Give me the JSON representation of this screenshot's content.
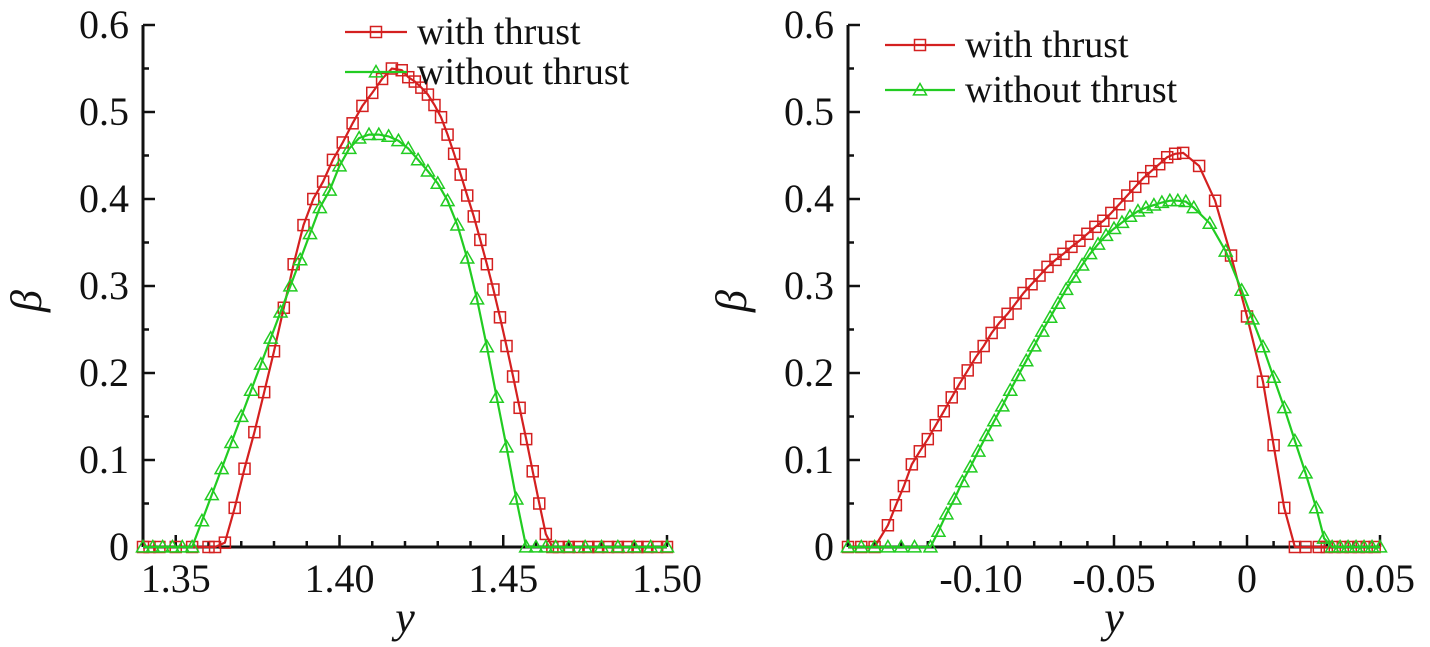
{
  "colors": {
    "with_thrust": "#d42020",
    "without_thrust": "#22cc22",
    "axis": "#111111"
  },
  "chart_data": [
    {
      "type": "line",
      "xlabel": "y",
      "ylabel": "β",
      "xlim": [
        1.34,
        1.5
      ],
      "ylim": [
        0,
        0.6
      ],
      "xticks": [
        1.35,
        1.4,
        1.45,
        1.5
      ],
      "xtick_labels": [
        "1.35",
        "1.40",
        "1.45",
        "1.50"
      ],
      "yticks": [
        0,
        0.1,
        0.2,
        0.3,
        0.4,
        0.5,
        0.6
      ],
      "ytick_labels": [
        "0",
        "0.1",
        "0.2",
        "0.3",
        "0.4",
        "0.5",
        "0.6"
      ],
      "legend_placement": "top-right",
      "series": [
        {
          "name": "with thrust",
          "marker": "square",
          "x": [
            1.34,
            1.342,
            1.345,
            1.35,
            1.355,
            1.36,
            1.362,
            1.365,
            1.368,
            1.371,
            1.374,
            1.377,
            1.38,
            1.383,
            1.386,
            1.389,
            1.392,
            1.395,
            1.398,
            1.401,
            1.404,
            1.407,
            1.41,
            1.413,
            1.416,
            1.419,
            1.421,
            1.423,
            1.425,
            1.427,
            1.429,
            1.431,
            1.433,
            1.435,
            1.437,
            1.439,
            1.441,
            1.443,
            1.445,
            1.447,
            1.449,
            1.451,
            1.453,
            1.455,
            1.457,
            1.459,
            1.461,
            1.463,
            1.465,
            1.467,
            1.47,
            1.473,
            1.476,
            1.479,
            1.482,
            1.485,
            1.488,
            1.491,
            1.494,
            1.497,
            1.5
          ],
          "y": [
            0.0,
            0.0,
            0.0,
            0.0,
            0.0,
            0.0,
            0.0,
            0.005,
            0.045,
            0.09,
            0.132,
            0.178,
            0.225,
            0.275,
            0.325,
            0.37,
            0.4,
            0.42,
            0.445,
            0.465,
            0.487,
            0.507,
            0.522,
            0.538,
            0.55,
            0.548,
            0.54,
            0.535,
            0.528,
            0.52,
            0.508,
            0.494,
            0.474,
            0.452,
            0.428,
            0.404,
            0.38,
            0.353,
            0.325,
            0.296,
            0.264,
            0.231,
            0.196,
            0.16,
            0.124,
            0.087,
            0.05,
            0.015,
            0.0,
            0.0,
            0.0,
            0.0,
            0.0,
            0.0,
            0.0,
            0.0,
            0.0,
            0.0,
            0.0,
            0.0,
            0.0
          ]
        },
        {
          "name": "without thrust",
          "marker": "triangle",
          "x": [
            1.34,
            1.343,
            1.346,
            1.349,
            1.352,
            1.355,
            1.358,
            1.361,
            1.364,
            1.367,
            1.37,
            1.373,
            1.376,
            1.379,
            1.382,
            1.385,
            1.388,
            1.391,
            1.394,
            1.397,
            1.4,
            1.403,
            1.406,
            1.409,
            1.412,
            1.415,
            1.418,
            1.421,
            1.424,
            1.427,
            1.43,
            1.433,
            1.436,
            1.439,
            1.442,
            1.445,
            1.448,
            1.451,
            1.454,
            1.457,
            1.46,
            1.463,
            1.466,
            1.47,
            1.475,
            1.48,
            1.485,
            1.49,
            1.495,
            1.5
          ],
          "y": [
            0.0,
            0.0,
            0.0,
            0.0,
            0.0,
            0.0,
            0.03,
            0.06,
            0.09,
            0.12,
            0.15,
            0.18,
            0.21,
            0.24,
            0.27,
            0.3,
            0.33,
            0.36,
            0.39,
            0.41,
            0.438,
            0.458,
            0.47,
            0.474,
            0.474,
            0.472,
            0.467,
            0.458,
            0.445,
            0.432,
            0.418,
            0.398,
            0.37,
            0.332,
            0.285,
            0.23,
            0.172,
            0.115,
            0.055,
            0.0,
            0.0,
            0.0,
            0.0,
            0.0,
            0.0,
            0.0,
            0.0,
            0.0,
            0.0,
            0.0
          ]
        }
      ]
    },
    {
      "type": "line",
      "xlabel": "y",
      "ylabel": "β",
      "xlim": [
        -0.15,
        0.05
      ],
      "ylim": [
        0,
        0.6
      ],
      "xticks": [
        -0.1,
        -0.05,
        0,
        0.05
      ],
      "xtick_labels": [
        "-0.10",
        "-0.05",
        "0",
        "0.05"
      ],
      "yticks": [
        0,
        0.1,
        0.2,
        0.3,
        0.4,
        0.5,
        0.6
      ],
      "ytick_labels": [
        "0",
        "0.1",
        "0.2",
        "0.3",
        "0.4",
        "0.5",
        "0.6"
      ],
      "legend_placement": "top-left",
      "series": [
        {
          "name": "with thrust",
          "marker": "square",
          "x": [
            -0.15,
            -0.145,
            -0.14,
            -0.135,
            -0.132,
            -0.129,
            -0.126,
            -0.123,
            -0.12,
            -0.117,
            -0.114,
            -0.111,
            -0.108,
            -0.105,
            -0.102,
            -0.099,
            -0.096,
            -0.093,
            -0.09,
            -0.087,
            -0.084,
            -0.081,
            -0.078,
            -0.075,
            -0.072,
            -0.069,
            -0.066,
            -0.063,
            -0.06,
            -0.057,
            -0.054,
            -0.051,
            -0.048,
            -0.045,
            -0.042,
            -0.039,
            -0.036,
            -0.033,
            -0.03,
            -0.027,
            -0.024,
            -0.018,
            -0.012,
            -0.006,
            0.0,
            0.006,
            0.01,
            0.014,
            0.018,
            0.022,
            0.027,
            0.03,
            0.033,
            0.036,
            0.039,
            0.042,
            0.045,
            0.048
          ],
          "y": [
            0.0,
            0.0,
            0.0,
            0.025,
            0.048,
            0.07,
            0.095,
            0.11,
            0.124,
            0.14,
            0.156,
            0.172,
            0.188,
            0.203,
            0.218,
            0.231,
            0.246,
            0.258,
            0.268,
            0.28,
            0.292,
            0.302,
            0.312,
            0.322,
            0.33,
            0.337,
            0.345,
            0.352,
            0.36,
            0.368,
            0.375,
            0.384,
            0.394,
            0.404,
            0.414,
            0.424,
            0.432,
            0.44,
            0.448,
            0.452,
            0.453,
            0.438,
            0.398,
            0.335,
            0.265,
            0.19,
            0.117,
            0.045,
            0.0,
            0.0,
            0.0,
            0.0,
            0.0,
            0.0,
            0.0,
            0.0,
            0.0,
            0.0
          ]
        },
        {
          "name": "without thrust",
          "marker": "triangle",
          "x": [
            -0.15,
            -0.145,
            -0.14,
            -0.135,
            -0.13,
            -0.125,
            -0.119,
            -0.116,
            -0.113,
            -0.11,
            -0.107,
            -0.104,
            -0.101,
            -0.098,
            -0.095,
            -0.092,
            -0.089,
            -0.086,
            -0.083,
            -0.08,
            -0.077,
            -0.074,
            -0.071,
            -0.068,
            -0.065,
            -0.062,
            -0.059,
            -0.056,
            -0.053,
            -0.05,
            -0.047,
            -0.044,
            -0.041,
            -0.038,
            -0.035,
            -0.032,
            -0.029,
            -0.026,
            -0.023,
            -0.02,
            -0.014,
            -0.008,
            -0.002,
            0.002,
            0.006,
            0.01,
            0.014,
            0.018,
            0.022,
            0.026,
            0.029,
            0.032,
            0.035,
            0.038,
            0.041,
            0.044,
            0.047,
            0.05
          ],
          "y": [
            0.0,
            0.0,
            0.0,
            0.0,
            0.0,
            0.0,
            0.0,
            0.018,
            0.038,
            0.055,
            0.075,
            0.092,
            0.11,
            0.128,
            0.145,
            0.162,
            0.18,
            0.197,
            0.214,
            0.231,
            0.248,
            0.264,
            0.28,
            0.296,
            0.31,
            0.324,
            0.337,
            0.348,
            0.358,
            0.366,
            0.373,
            0.38,
            0.386,
            0.39,
            0.393,
            0.396,
            0.398,
            0.398,
            0.397,
            0.39,
            0.372,
            0.34,
            0.295,
            0.262,
            0.23,
            0.195,
            0.16,
            0.122,
            0.085,
            0.045,
            0.01,
            0.0,
            0.0,
            0.0,
            0.0,
            0.0,
            0.0,
            0.0
          ]
        }
      ]
    }
  ]
}
